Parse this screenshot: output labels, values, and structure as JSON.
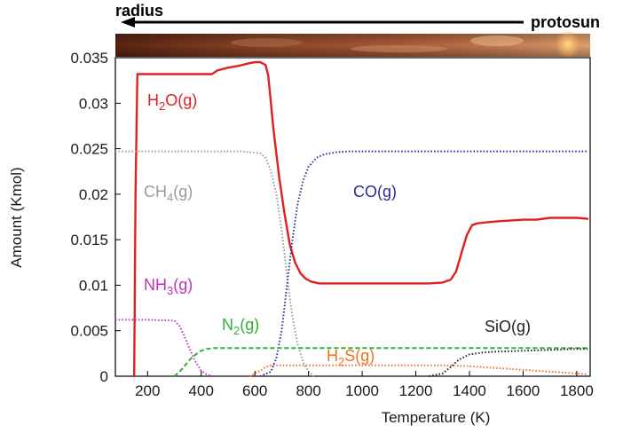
{
  "header": {
    "left_label": "radius",
    "right_label": "protosun"
  },
  "chart_data": {
    "type": "line",
    "xlabel": "Temperature (K)",
    "ylabel": "Amount (Kmol)",
    "xlim": [
      80,
      1850
    ],
    "ylim": [
      0,
      0.035
    ],
    "x_ticks": [
      200,
      400,
      600,
      800,
      1000,
      1200,
      1400,
      1600,
      1800
    ],
    "y_ticks": [
      0,
      0.005,
      0.01,
      0.015,
      0.02,
      0.025,
      0.03,
      0.035
    ],
    "y_tick_labels": [
      "0",
      "0.005",
      "0.01",
      "0.015",
      "0.02",
      "0.025",
      "0.03",
      "0.035"
    ],
    "grid": false,
    "series": [
      {
        "name": "H2O(g)",
        "label_base": "H",
        "label_sub": "2",
        "label_tail": "O(g)",
        "color": "#e02020",
        "style": "solid",
        "x": [
          150,
          155,
          162,
          200,
          300,
          440,
          460,
          500,
          540,
          580,
          600,
          620,
          640,
          650,
          660,
          670,
          690,
          710,
          730,
          750,
          770,
          790,
          810,
          840,
          880,
          950,
          1050,
          1150,
          1250,
          1300,
          1330,
          1350,
          1370,
          1390,
          1410,
          1430,
          1460,
          1500,
          1550,
          1600,
          1650,
          1700,
          1750,
          1800,
          1840
        ],
        "y": [
          0,
          0.02,
          0.0332,
          0.0332,
          0.0332,
          0.0332,
          0.0336,
          0.0339,
          0.0341,
          0.0344,
          0.0345,
          0.0345,
          0.0342,
          0.033,
          0.03,
          0.027,
          0.022,
          0.018,
          0.0145,
          0.0125,
          0.0113,
          0.0107,
          0.0104,
          0.0102,
          0.0102,
          0.0102,
          0.0102,
          0.0102,
          0.0102,
          0.0103,
          0.0106,
          0.0115,
          0.0135,
          0.0155,
          0.0166,
          0.0168,
          0.0169,
          0.017,
          0.0171,
          0.0172,
          0.0172,
          0.0174,
          0.0174,
          0.0174,
          0.0173
        ]
      },
      {
        "name": "CH4(g)",
        "label_base": "CH",
        "label_sub": "4",
        "label_tail": "(g)",
        "color": "#9a9a9a",
        "style": "dotted",
        "x": [
          80,
          200,
          400,
          550,
          620,
          640,
          660,
          680,
          700,
          720,
          740,
          760,
          780,
          800,
          820
        ],
        "y": [
          0.0247,
          0.0247,
          0.0247,
          0.0247,
          0.0245,
          0.024,
          0.0225,
          0.02,
          0.016,
          0.011,
          0.0065,
          0.0035,
          0.0015,
          0.0005,
          0
        ]
      },
      {
        "name": "CO(g)",
        "label_base": "CO(g)",
        "label_sub": "",
        "label_tail": "",
        "color": "#2a2a9a",
        "style": "dotted",
        "x": [
          620,
          660,
          680,
          700,
          720,
          740,
          760,
          780,
          800,
          830,
          860,
          900,
          950,
          1000,
          1100,
          1200,
          1400,
          1600,
          1840
        ],
        "y": [
          0,
          0.0005,
          0.002,
          0.005,
          0.01,
          0.015,
          0.019,
          0.0215,
          0.023,
          0.024,
          0.0244,
          0.0246,
          0.0247,
          0.0247,
          0.0247,
          0.0247,
          0.0247,
          0.0247,
          0.0247
        ]
      },
      {
        "name": "NH3(g)",
        "label_base": "NH",
        "label_sub": "3",
        "label_tail": "(g)",
        "color": "#c030c0",
        "style": "dotted",
        "x": [
          80,
          200,
          300,
          320,
          340,
          360,
          380,
          400,
          420,
          440
        ],
        "y": [
          0.0062,
          0.0062,
          0.0061,
          0.0055,
          0.0042,
          0.0028,
          0.0015,
          0.0006,
          0.0002,
          0
        ]
      },
      {
        "name": "N2(g)",
        "label_base": "N",
        "label_sub": "2",
        "label_tail": "(g)",
        "color": "#30b030",
        "style": "dashed",
        "x": [
          300,
          320,
          340,
          360,
          380,
          400,
          420,
          450,
          500,
          600,
          700,
          800,
          1000,
          1200,
          1400,
          1600,
          1840
        ],
        "y": [
          0,
          0.0005,
          0.0012,
          0.0019,
          0.0024,
          0.0028,
          0.003,
          0.0031,
          0.0031,
          0.0031,
          0.0031,
          0.0031,
          0.0031,
          0.0031,
          0.0031,
          0.0031,
          0.0031
        ]
      },
      {
        "name": "H2S(g)",
        "label_base": "H",
        "label_sub": "2",
        "label_tail": "S(g)",
        "color": "#f07020",
        "style": "dotted",
        "x": [
          580,
          600,
          620,
          640,
          660,
          700,
          800,
          900,
          1000,
          1100,
          1200,
          1300,
          1400,
          1500,
          1600,
          1700,
          1800,
          1840
        ],
        "y": [
          0,
          0.0003,
          0.0006,
          0.001,
          0.0012,
          0.0012,
          0.0012,
          0.0012,
          0.0012,
          0.0012,
          0.0012,
          0.0012,
          0.0011,
          0.0009,
          0.0007,
          0.0005,
          0.0003,
          0.0002
        ]
      },
      {
        "name": "SiO(g)",
        "label_base": "SiO(g)",
        "label_sub": "",
        "label_tail": "",
        "color": "#222222",
        "style": "dotted",
        "x": [
          1250,
          1300,
          1330,
          1360,
          1400,
          1450,
          1500,
          1600,
          1700,
          1800,
          1840
        ],
        "y": [
          0,
          0.0003,
          0.001,
          0.0018,
          0.0024,
          0.0026,
          0.0027,
          0.0028,
          0.0029,
          0.003,
          0.003
        ]
      }
    ]
  }
}
